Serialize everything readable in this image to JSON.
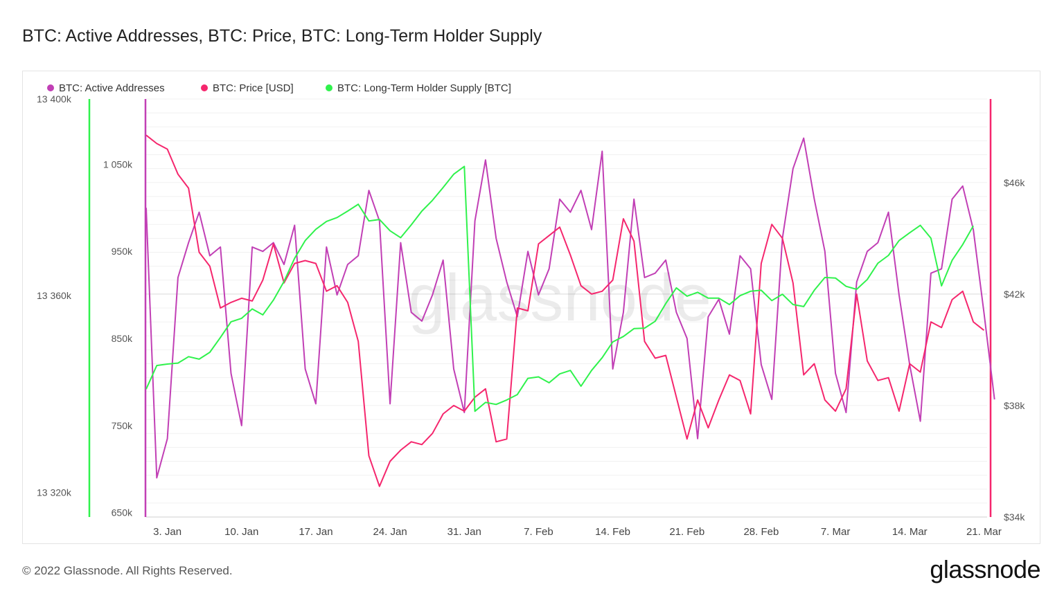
{
  "title": "BTC: Active Addresses, BTC: Price, BTC: Long-Term Holder Supply",
  "footer": {
    "copyright": "© 2022 Glassnode. All Rights Reserved.",
    "logo_text": "glassnode"
  },
  "watermark": "glassnode",
  "chart_data": {
    "type": "line",
    "x_start": "2022-01-01",
    "x_end": "2022-03-21",
    "x_ticks": [
      {
        "date": "2022-01-03",
        "label": "3. Jan"
      },
      {
        "date": "2022-01-10",
        "label": "10. Jan"
      },
      {
        "date": "2022-01-17",
        "label": "17. Jan"
      },
      {
        "date": "2022-01-24",
        "label": "24. Jan"
      },
      {
        "date": "2022-01-31",
        "label": "31. Jan"
      },
      {
        "date": "2022-02-07",
        "label": "7. Feb"
      },
      {
        "date": "2022-02-14",
        "label": "14. Feb"
      },
      {
        "date": "2022-02-21",
        "label": "21. Feb"
      },
      {
        "date": "2022-02-28",
        "label": "28. Feb"
      },
      {
        "date": "2022-03-07",
        "label": "7. Mar"
      },
      {
        "date": "2022-03-14",
        "label": "14. Mar"
      },
      {
        "date": "2022-03-21",
        "label": "21. Mar"
      }
    ],
    "axes": {
      "supply": {
        "min": 13315000,
        "max": 13400000,
        "ticks": [
          {
            "v": 13320000,
            "label": "13 320k"
          },
          {
            "v": 13360000,
            "label": "13 360k"
          },
          {
            "v": 13400000,
            "label": "13 400k"
          }
        ]
      },
      "addresses": {
        "min": 645000,
        "max": 1125000,
        "ticks": [
          {
            "v": 650000,
            "label": "650k"
          },
          {
            "v": 750000,
            "label": "750k"
          },
          {
            "v": 850000,
            "label": "850k"
          },
          {
            "v": 950000,
            "label": "950k"
          },
          {
            "v": 1050000,
            "label": "1 050k"
          }
        ]
      },
      "price": {
        "min": 34000,
        "max": 49000,
        "ticks": [
          {
            "v": 34000,
            "label": "$34k"
          },
          {
            "v": 38000,
            "label": "$38k"
          },
          {
            "v": 42000,
            "label": "$42k"
          },
          {
            "v": 46000,
            "label": "$46k"
          }
        ]
      }
    },
    "series": [
      {
        "name": "BTC: Active Addresses",
        "color": "#c13fb5",
        "axis": "addresses",
        "values": [
          1000000,
          690000,
          735000,
          920000,
          960000,
          995000,
          945000,
          955000,
          810000,
          750000,
          955000,
          950000,
          960000,
          935000,
          980000,
          815000,
          775000,
          955000,
          900000,
          935000,
          945000,
          1020000,
          985000,
          775000,
          960000,
          880000,
          870000,
          900000,
          940000,
          815000,
          765000,
          985000,
          1055000,
          965000,
          915000,
          875000,
          950000,
          900000,
          930000,
          1010000,
          995000,
          1020000,
          975000,
          1065000,
          815000,
          880000,
          1010000,
          920000,
          925000,
          940000,
          880000,
          850000,
          735000,
          875000,
          895000,
          855000,
          945000,
          930000,
          820000,
          780000,
          965000,
          1045000,
          1080000,
          1010000,
          950000,
          810000,
          765000,
          915000,
          950000,
          960000,
          995000,
          900000,
          820000,
          755000,
          925000,
          930000,
          1010000,
          1025000,
          975000,
          880000,
          780000
        ]
      },
      {
        "name": "BTC: Price [USD]",
        "color": "#f5266d",
        "axis": "price",
        "values": [
          47700,
          47400,
          47200,
          46300,
          45800,
          43500,
          43000,
          41500,
          41700,
          41850,
          41750,
          42500,
          43800,
          42400,
          43100,
          43200,
          43100,
          42100,
          42300,
          41700,
          40300,
          36200,
          35100,
          36000,
          36400,
          36700,
          36600,
          37000,
          37700,
          38000,
          37800,
          38300,
          38600,
          36700,
          36800,
          41500,
          41400,
          43800,
          44100,
          44400,
          43400,
          42300,
          42000,
          42100,
          42500,
          44700,
          43900,
          40300,
          39700,
          39800,
          38300,
          36800,
          38200,
          37200,
          38200,
          39100,
          38900,
          37700,
          43100,
          44500,
          44000,
          42400,
          39100,
          39500,
          38200,
          37800,
          38600,
          42000,
          39600,
          38900,
          39000,
          37800,
          39500,
          39200,
          41000,
          40800,
          41800,
          42100,
          41000,
          40700
        ]
      },
      {
        "name": "BTC: Long-Term Holder Supply [BTC]",
        "color": "#2ff24c",
        "axis": "supply",
        "values": [
          13341000,
          13345800,
          13346100,
          13346300,
          13347600,
          13347100,
          13348500,
          13351500,
          13354700,
          13355400,
          13357300,
          13356100,
          13359100,
          13362900,
          13367600,
          13371200,
          13373500,
          13375100,
          13375900,
          13377200,
          13378600,
          13375200,
          13375500,
          13373200,
          13371800,
          13374400,
          13377200,
          13379400,
          13382000,
          13384700,
          13386300,
          13336500,
          13338300,
          13337900,
          13338800,
          13339900,
          13343200,
          13343500,
          13342300,
          13344100,
          13344800,
          13341600,
          13344800,
          13347400,
          13350600,
          13351700,
          13353300,
          13353400,
          13354800,
          13358400,
          13361600,
          13359900,
          13360700,
          13359500,
          13359500,
          13358200,
          13360000,
          13360900,
          13361100,
          13359000,
          13360300,
          13358200,
          13357800,
          13361100,
          13363700,
          13363600,
          13361900,
          13361300,
          13363300,
          13366600,
          13368200,
          13371200,
          13372800,
          13374300,
          13371700,
          13362000,
          13367200,
          13370400,
          13374200
        ]
      }
    ]
  }
}
